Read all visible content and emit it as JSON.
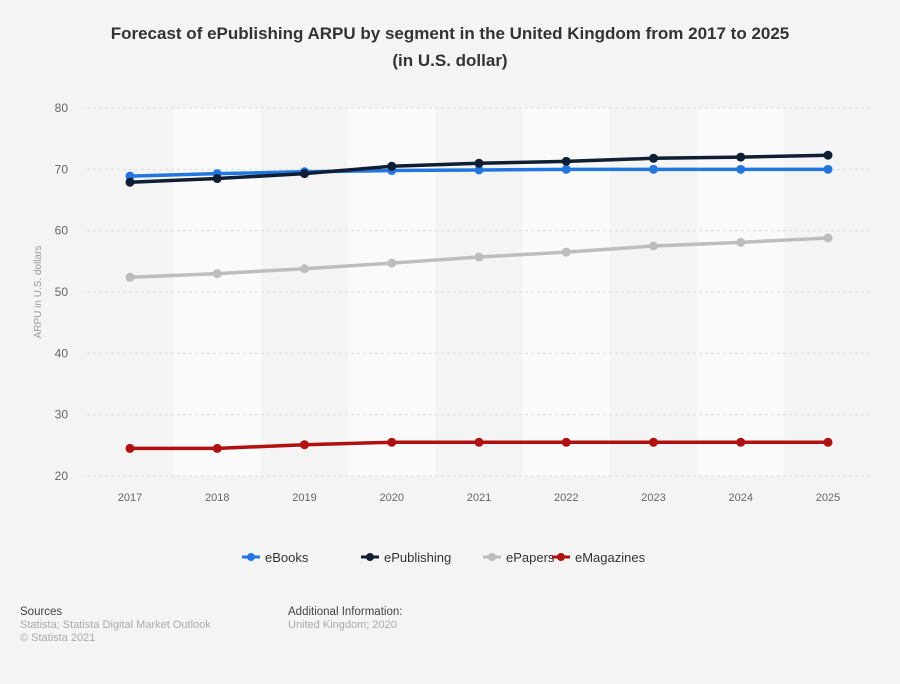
{
  "chart_data": {
    "type": "line",
    "title": "Forecast of ePublishing ARPU by segment in the United Kingdom from 2017 to 2025",
    "subtitle": "(in U.S. dollar)",
    "xlabel": "",
    "ylabel": "ARPU in U.S. dollars",
    "ylim": [
      20,
      80
    ],
    "yticks": [
      20,
      30,
      40,
      50,
      60,
      70,
      80
    ],
    "categories": [
      "2017",
      "2018",
      "2019",
      "2020",
      "2021",
      "2022",
      "2023",
      "2024",
      "2025"
    ],
    "grid": true,
    "legend_position": "bottom",
    "series": [
      {
        "name": "eBooks",
        "color": "#2176e0",
        "values": [
          68.9,
          69.3,
          69.6,
          69.8,
          69.9,
          70.0,
          70.0,
          70.0,
          70.0
        ]
      },
      {
        "name": "ePublishing",
        "color": "#0f1e33",
        "values": [
          67.9,
          68.5,
          69.3,
          70.5,
          71.0,
          71.3,
          71.8,
          72.0,
          72.3
        ]
      },
      {
        "name": "ePapers",
        "color": "#bdbdbd",
        "values": [
          52.4,
          53.0,
          53.8,
          54.7,
          55.7,
          56.5,
          57.5,
          58.1,
          58.8
        ]
      },
      {
        "name": "eMagazines",
        "color": "#b01010",
        "values": [
          24.5,
          24.5,
          25.1,
          25.5,
          25.5,
          25.5,
          25.5,
          25.5,
          25.5
        ]
      }
    ]
  },
  "footer": {
    "sources_heading": "Sources",
    "sources": "Statista; Statista Digital Market Outlook",
    "copyright": "© Statista 2021",
    "additional_heading": "Additional Information:",
    "additional": "United Kingdom; 2020"
  }
}
